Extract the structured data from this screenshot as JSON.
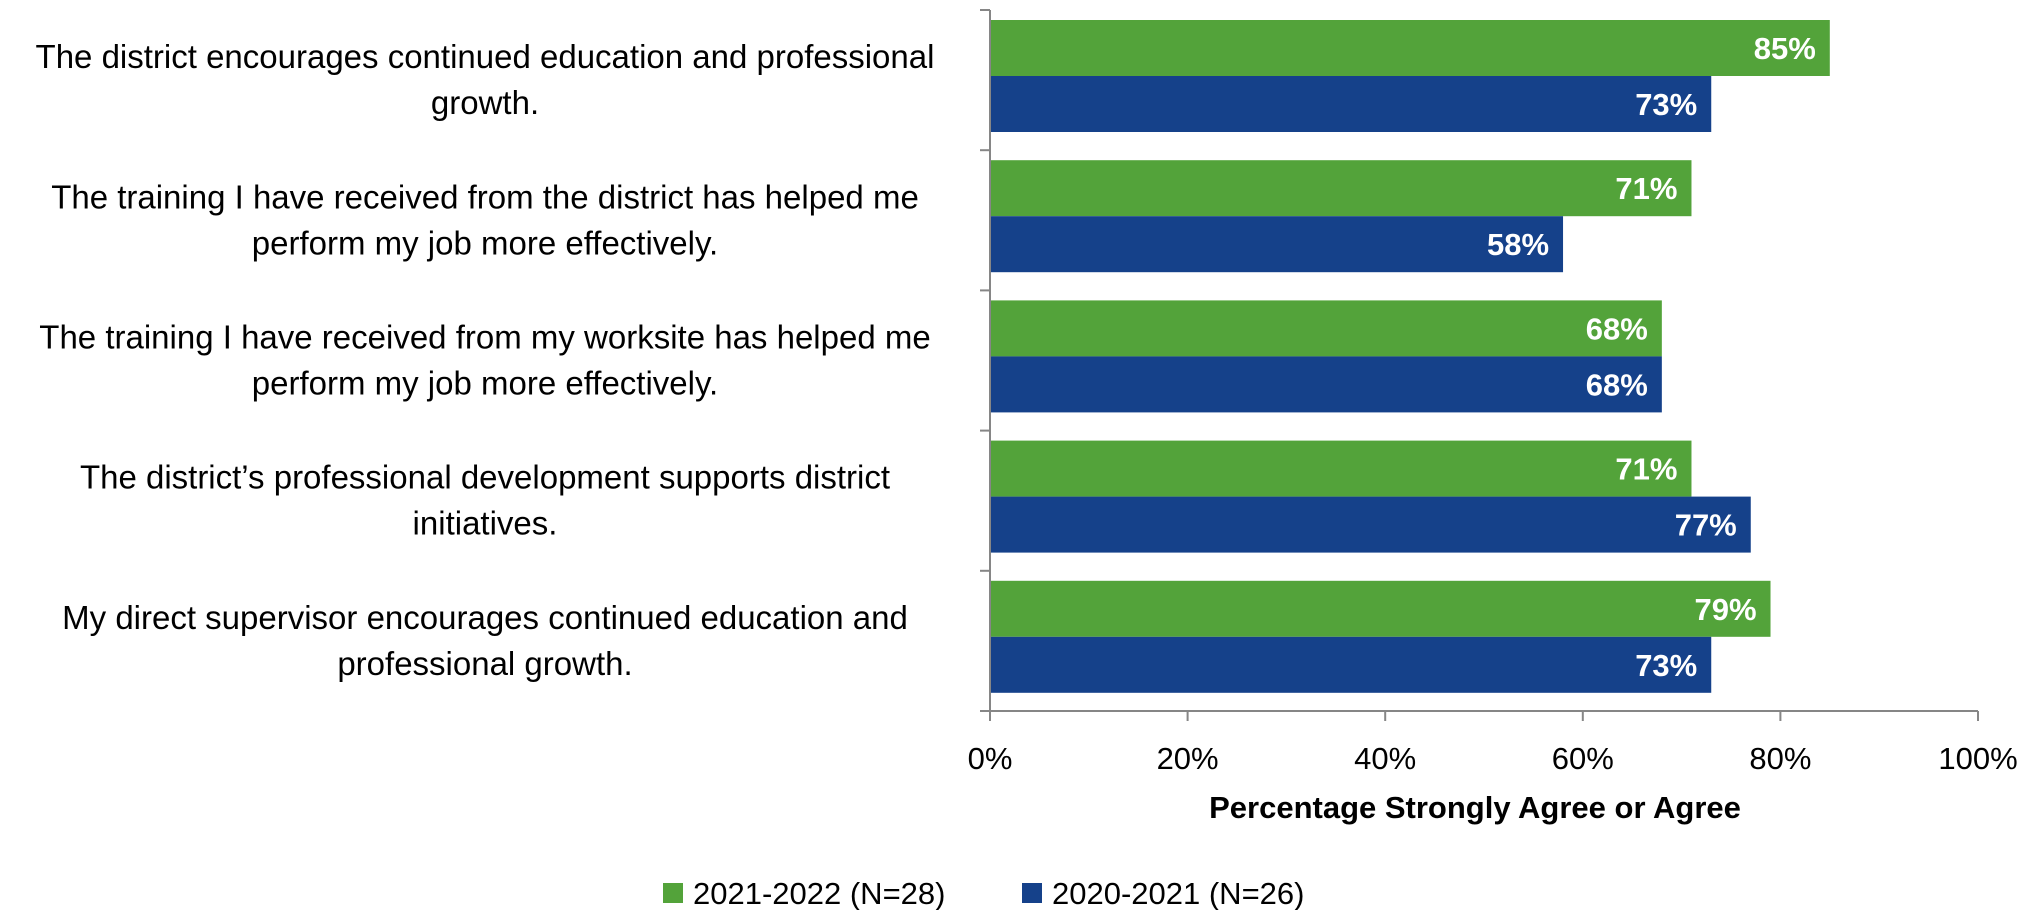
{
  "chart_data": {
    "type": "bar",
    "orientation": "horizontal",
    "categories": [
      [
        "The district encourages continued education and professional",
        "growth."
      ],
      [
        "The training I have received from the district has helped me",
        "perform my job more effectively."
      ],
      [
        "The training I have received from my worksite has helped me",
        "perform my job more effectively."
      ],
      [
        "The district’s professional development supports district",
        "initiatives."
      ],
      [
        "My direct supervisor encourages continued education and",
        "professional growth."
      ]
    ],
    "series": [
      {
        "name": "2021-2022 (N=28)",
        "color": "#53a33a",
        "values": [
          85,
          71,
          68,
          71,
          79
        ],
        "labels": [
          "85%",
          "71%",
          "68%",
          "71%",
          "79%"
        ]
      },
      {
        "name": "2020-2021 (N=26)",
        "color": "#15418a",
        "values": [
          73,
          58,
          68,
          77,
          73
        ],
        "labels": [
          "73%",
          "58%",
          "68%",
          "77%",
          "73%"
        ]
      }
    ],
    "xlim": [
      0,
      100
    ],
    "xticks": [
      "0%",
      "20%",
      "40%",
      "60%",
      "80%",
      "100%"
    ],
    "xlabel": "Percentage Strongly Agree or Agree",
    "ylabel": "",
    "grid": false,
    "legend_position": "bottom"
  }
}
